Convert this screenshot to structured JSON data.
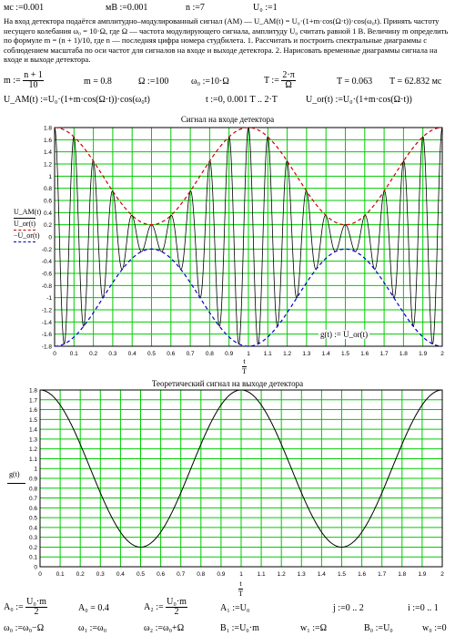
{
  "top_vars": [
    "мс :=0.001",
    "мВ :=0.001",
    "n :=7",
    "U₀ :=1"
  ],
  "paragraph": "На вход детектора подаётся амплитудно–модулированный сигнал (AM) — U_AM(t) = U₀·(1+m·cos(Ω·t))·cos(ω₀t). Принять частоту несущего колебания ω₀ = 10·Ω, где Ω — частота модулирующего сигнала, амплитуду U₀ считать равной 1 В. Величину m определить по формуле m = (n + 1)/10, где n — последняя цифра номера студбилета. 1. Рассчитать и построить спектральные диаграммы с соблюдением масштаба по оси частот для сигналов на входе и выходе детектора. 2. Нарисовать временные диаграммы сигнала на входе и выходе детектора.",
  "defs_row1": {
    "m_label": "m :=",
    "m_num": "n + 1",
    "m_den": "10",
    "m_val": "m = 0.8",
    "Omega": "Ω :=100",
    "omega0": "ω₀ :=10·Ω",
    "T_label": "T :=",
    "T_num": "2·π",
    "T_den": "Ω",
    "T_val": "T = 0.063",
    "T_ms": "T = 62.832 мс"
  },
  "defs_row2": {
    "uam": "U_AM(t) :=U₀·(1+m·cos(Ω·t))·cos(ω₀t)",
    "trange": "t :=0, 0.001 T .. 2·T",
    "uor": "U_or(t) :=U₀·(1+m·cos(Ω·t))"
  },
  "chart1": {
    "title": "Сигнал на входе детектора",
    "legend": [
      "U_AM(t)",
      "U_or(t)",
      "−U_or(t)"
    ],
    "annotation": "g(t) := U_or(t)",
    "xlabel_num": "t",
    "xlabel_den": "T"
  },
  "chart2": {
    "title": "Теоретический сигнал на выходе детектора",
    "ylabel": "g(t)",
    "xlabel_num": "t",
    "xlabel_den": "T"
  },
  "bottom_row1": [
    "A₀ :=",
    "A₀ = 0.4",
    "A₂ :=",
    "A₁ :=U₀",
    "j :=0 .. 2",
    "i :=0 .. 1"
  ],
  "bottom_fracs": {
    "a0_num": "U₀·m",
    "a0_den": "2",
    "a2_num": "U₀·m",
    "a2_den": "2"
  },
  "bottom_row2": [
    "ω₀ :=ω₀−Ω",
    "ω₁ :=ω₀",
    "ω₂ :=ω₀+Ω",
    "B₁ :=U₀·m",
    "w₁ :=Ω",
    "B₀ :=U₀",
    "w₀ :=0"
  ],
  "chart_data": [
    {
      "type": "line",
      "title": "Сигнал на входе детектора",
      "xlabel": "t/T",
      "ylabel": "",
      "xlim": [
        0,
        2
      ],
      "ylim": [
        -1.8,
        1.8
      ],
      "x_ticks": [
        0,
        0.1,
        0.2,
        0.3,
        0.4,
        0.5,
        0.6,
        0.7,
        0.8,
        0.9,
        1,
        1.1,
        1.2,
        1.3,
        1.4,
        1.5,
        1.6,
        1.7,
        1.8,
        1.9,
        2
      ],
      "y_ticks": [
        -1.8,
        -1.6,
        -1.4,
        -1.2,
        -1,
        -0.8,
        -0.6,
        -0.4,
        -0.2,
        0,
        0.2,
        0.4,
        0.6,
        0.8,
        1,
        1.2,
        1.4,
        1.6,
        1.8
      ],
      "grid": true,
      "params": {
        "U0": 1,
        "m": 0.8,
        "carrier_to_modulation_ratio": 10
      },
      "series": [
        {
          "name": "U_AM(t)",
          "formula": "U0*(1+m*cos(Omega*t))*cos(omega0*t)",
          "color": "#000000",
          "style": "solid"
        },
        {
          "name": "U_or(t)",
          "formula": "U0*(1+m*cos(Omega*t))",
          "color": "#cc0000",
          "style": "dashed"
        },
        {
          "name": "-U_or(t)",
          "formula": "-U0*(1+m*cos(Omega*t))",
          "color": "#0000cc",
          "style": "dashed"
        }
      ]
    },
    {
      "type": "line",
      "title": "Теоретический сигнал на выходе детектора",
      "xlabel": "t/T",
      "ylabel": "g(t)",
      "xlim": [
        0,
        2
      ],
      "ylim": [
        0,
        1.8
      ],
      "x_ticks": [
        0,
        0.1,
        0.2,
        0.3,
        0.4,
        0.5,
        0.6,
        0.7,
        0.8,
        0.9,
        1,
        1.1,
        1.2,
        1.3,
        1.4,
        1.5,
        1.6,
        1.7,
        1.8,
        1.9,
        2
      ],
      "y_ticks": [
        0,
        0.1,
        0.2,
        0.3,
        0.4,
        0.5,
        0.6,
        0.7,
        0.8,
        0.9,
        1,
        1.1,
        1.2,
        1.3,
        1.4,
        1.5,
        1.6,
        1.7,
        1.8
      ],
      "grid": true,
      "series": [
        {
          "name": "g(t)",
          "formula": "U0*(1+m*cos(Omega*t))",
          "color": "#000000",
          "style": "solid"
        }
      ]
    }
  ],
  "colors": {
    "grid": "#00cc00",
    "envelope_top": "#cc0000",
    "envelope_bottom": "#0000cc",
    "signal": "#000000"
  }
}
